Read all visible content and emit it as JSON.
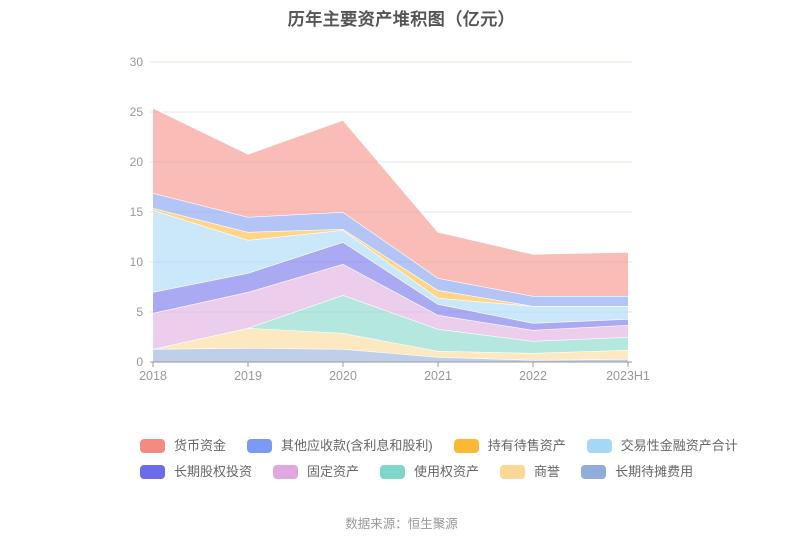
{
  "title": "历年主要资产堆积图（亿元）",
  "source": "数据来源：恒生聚源",
  "palette": {
    "title_color": "#555555",
    "axis_label_color": "#999999",
    "axis_line_color": "#999999",
    "grid_line_color": "#e2e8f4",
    "legend_text_color": "#666666",
    "background": "#ffffff",
    "band_border_color": "#ffffff"
  },
  "chart_data": {
    "type": "area",
    "stacked": true,
    "title": "历年主要资产堆积图（亿元）",
    "xlabel": "",
    "ylabel": "",
    "categories": [
      "2018",
      "2019",
      "2020",
      "2021",
      "2022",
      "2023H1"
    ],
    "series": [
      {
        "name": "货币资金",
        "color": "#F48B83",
        "values": [
          8.5,
          6.3,
          9.2,
          4.6,
          4.2,
          4.4
        ]
      },
      {
        "name": "其他应收款(含利息和股利)",
        "color": "#7C9AF2",
        "values": [
          1.5,
          1.5,
          1.7,
          1.2,
          1.0,
          1.0
        ]
      },
      {
        "name": "持有待售资产",
        "color": "#FBB934",
        "values": [
          0.2,
          0.8,
          0.1,
          0.8,
          0.0,
          0.0
        ]
      },
      {
        "name": "交易性金融资产合计",
        "color": "#A6D8F6",
        "values": [
          8.2,
          3.3,
          1.2,
          0.6,
          1.7,
          1.3
        ]
      },
      {
        "name": "长期股权投资",
        "color": "#6C6CEA",
        "values": [
          2.1,
          1.9,
          2.2,
          1.1,
          0.7,
          0.6
        ]
      },
      {
        "name": "固定资产",
        "color": "#DFA8DF",
        "values": [
          3.6,
          3.6,
          3.1,
          1.4,
          1.1,
          1.2
        ]
      },
      {
        "name": "使用权资产",
        "color": "#7ED7C8",
        "values": [
          0.0,
          0.0,
          3.8,
          2.2,
          1.2,
          1.3
        ]
      },
      {
        "name": "商誉",
        "color": "#FAD795",
        "values": [
          0.0,
          2.0,
          1.6,
          0.6,
          0.7,
          0.9
        ]
      },
      {
        "name": "长期待摊费用",
        "color": "#90ACDB",
        "values": [
          1.3,
          1.4,
          1.3,
          0.5,
          0.2,
          0.3
        ]
      }
    ],
    "stack_bottom_to_top": [
      "长期待摊费用",
      "商誉",
      "使用权资产",
      "固定资产",
      "长期股权投资",
      "交易性金融资产合计",
      "持有待售资产",
      "其他应收款(含利息和股利)",
      "货币资金"
    ],
    "totals": [
      25.4,
      20.8,
      24.2,
      13.0,
      10.8,
      11.0
    ],
    "ylim": [
      0,
      30
    ],
    "yticks": [
      0,
      5,
      10,
      15,
      20,
      25,
      30
    ],
    "grid": true,
    "legend_position": "bottom",
    "area_opacity": 0.58
  }
}
